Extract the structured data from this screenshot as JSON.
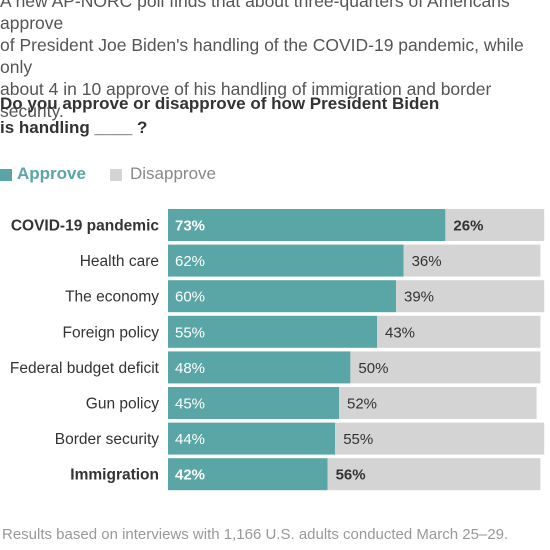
{
  "intro": {
    "line1": "A new AP-NORC poll finds that about three-quarters of Americans approve",
    "line2": "of President Joe Biden's handling of the COVID-19 pandemic, while only",
    "line3": "about 4 in 10 approve of his handling of immigration and border security."
  },
  "question": {
    "line1": "Do you approve or disapprove of how President Biden",
    "line2": "is handling ____ ?"
  },
  "legend": {
    "approve": "Approve",
    "disapprove": "Disapprove"
  },
  "colors": {
    "approve": "#5aa5a5",
    "disapprove": "#d4d4d4"
  },
  "chart_data": {
    "type": "bar",
    "orientation": "horizontal",
    "stacked": true,
    "categories": [
      "COVID-19 pandemic",
      "Health care",
      "The economy",
      "Foreign policy",
      "Federal budget deficit",
      "Gun policy",
      "Border security",
      "Immigration"
    ],
    "bold_categories": [
      "COVID-19 pandemic",
      "Immigration"
    ],
    "series": [
      {
        "name": "Approve",
        "values": [
          73,
          62,
          60,
          55,
          48,
          45,
          44,
          42
        ],
        "labels": [
          "73%",
          "62%",
          "60%",
          "55%",
          "48%",
          "45%",
          "44%",
          "42%"
        ]
      },
      {
        "name": "Disapprove",
        "values": [
          26,
          36,
          39,
          43,
          50,
          52,
          55,
          56
        ],
        "labels": [
          "26%",
          "36%",
          "39%",
          "43%",
          "50%",
          "52%",
          "55%",
          "56%"
        ]
      }
    ],
    "xlim": [
      0,
      100
    ],
    "legend_position": "top-left"
  },
  "footnote": {
    "line1": "Results based on interviews with 1,166 U.S. adults conducted March 25–29."
  }
}
